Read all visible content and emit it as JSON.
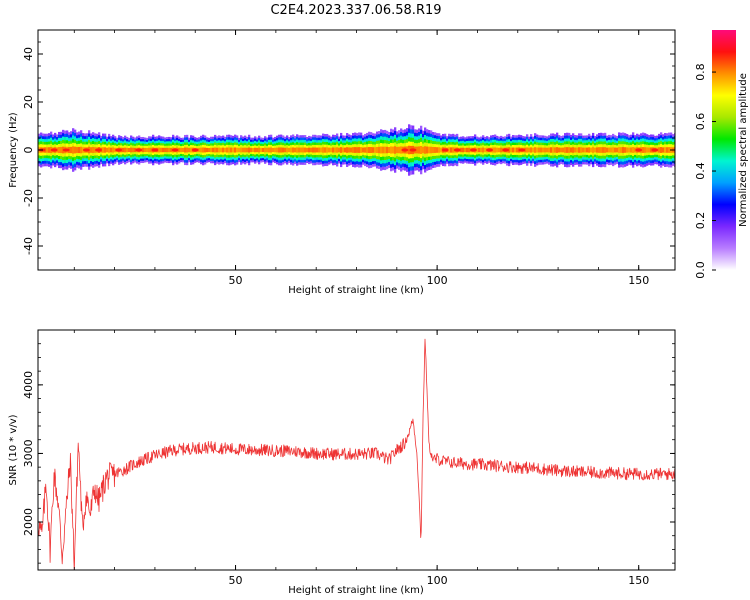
{
  "title": "C2E4.2023.337.06.58.R19",
  "chart_data": [
    {
      "type": "heatmap",
      "xlabel": "Height of straight line (km)",
      "ylabel": "Frequency (Hz)",
      "xlim": [
        1,
        159
      ],
      "ylim": [
        -50,
        50
      ],
      "xticks": [
        50,
        100,
        150
      ],
      "yticks": [
        40,
        20,
        0,
        -20,
        -40
      ],
      "band_center_hz": 0,
      "band_half_width_hz": [
        [
          1,
          4.0
        ],
        [
          10,
          5.0
        ],
        [
          20,
          3.5
        ],
        [
          40,
          3.5
        ],
        [
          60,
          3.5
        ],
        [
          80,
          4.0
        ],
        [
          88,
          5.0
        ],
        [
          93,
          6.0
        ],
        [
          96,
          5.5
        ],
        [
          100,
          4.0
        ],
        [
          110,
          3.5
        ],
        [
          130,
          4.0
        ],
        [
          159,
          4.0
        ]
      ],
      "hot_spots_km": [
        2,
        5,
        8,
        13,
        16,
        21,
        26,
        30,
        35,
        40,
        92,
        94,
        102,
        105,
        109,
        113,
        117,
        121,
        150,
        154
      ],
      "colorbar": {
        "label": "Normalized spectral amplitude",
        "ticks": [
          0.0,
          0.2,
          0.4,
          0.6,
          0.8
        ],
        "range": [
          0,
          0.97
        ],
        "colors": [
          "#ffffff",
          "#b87cff",
          "#7a28ff",
          "#0000ff",
          "#00a0ff",
          "#00f5d0",
          "#00e800",
          "#a8e800",
          "#ffff00",
          "#ff9000",
          "#ff1010",
          "#ff0a7a"
        ]
      }
    },
    {
      "type": "line",
      "xlabel": "Height of straight line (km)",
      "ylabel": "SNR (10 * v/v)",
      "xlim": [
        1,
        159
      ],
      "ylim": [
        1300,
        4800
      ],
      "xticks": [
        50,
        100,
        150
      ],
      "yticks": [
        2000,
        3000,
        4000
      ],
      "color": "#ee3333",
      "x": [
        1,
        2,
        3,
        4,
        5,
        6,
        7,
        8,
        9,
        10,
        11,
        12,
        13,
        14,
        15,
        16,
        18,
        20,
        22,
        25,
        30,
        35,
        40,
        45,
        50,
        55,
        60,
        65,
        70,
        75,
        80,
        85,
        88,
        90,
        92,
        93,
        94,
        95,
        95.5,
        96,
        96.5,
        97,
        97.5,
        98,
        99,
        100,
        102,
        105,
        110,
        115,
        120,
        125,
        130,
        135,
        140,
        145,
        150,
        155,
        159
      ],
      "values": [
        2000,
        1800,
        2600,
        1600,
        2700,
        2300,
        1500,
        2200,
        2900,
        1400,
        3200,
        1900,
        2400,
        2100,
        2500,
        2300,
        2650,
        2700,
        2750,
        2850,
        2970,
        3050,
        3080,
        3090,
        3060,
        3050,
        3040,
        3030,
        3000,
        2990,
        2990,
        3000,
        2900,
        3050,
        3150,
        3300,
        3500,
        3000,
        2400,
        1700,
        3500,
        4700,
        3900,
        3100,
        2900,
        2920,
        2880,
        2860,
        2840,
        2820,
        2800,
        2780,
        2750,
        2730,
        2720,
        2710,
        2700,
        2700,
        2700
      ],
      "noise_amplitude": 90
    }
  ]
}
